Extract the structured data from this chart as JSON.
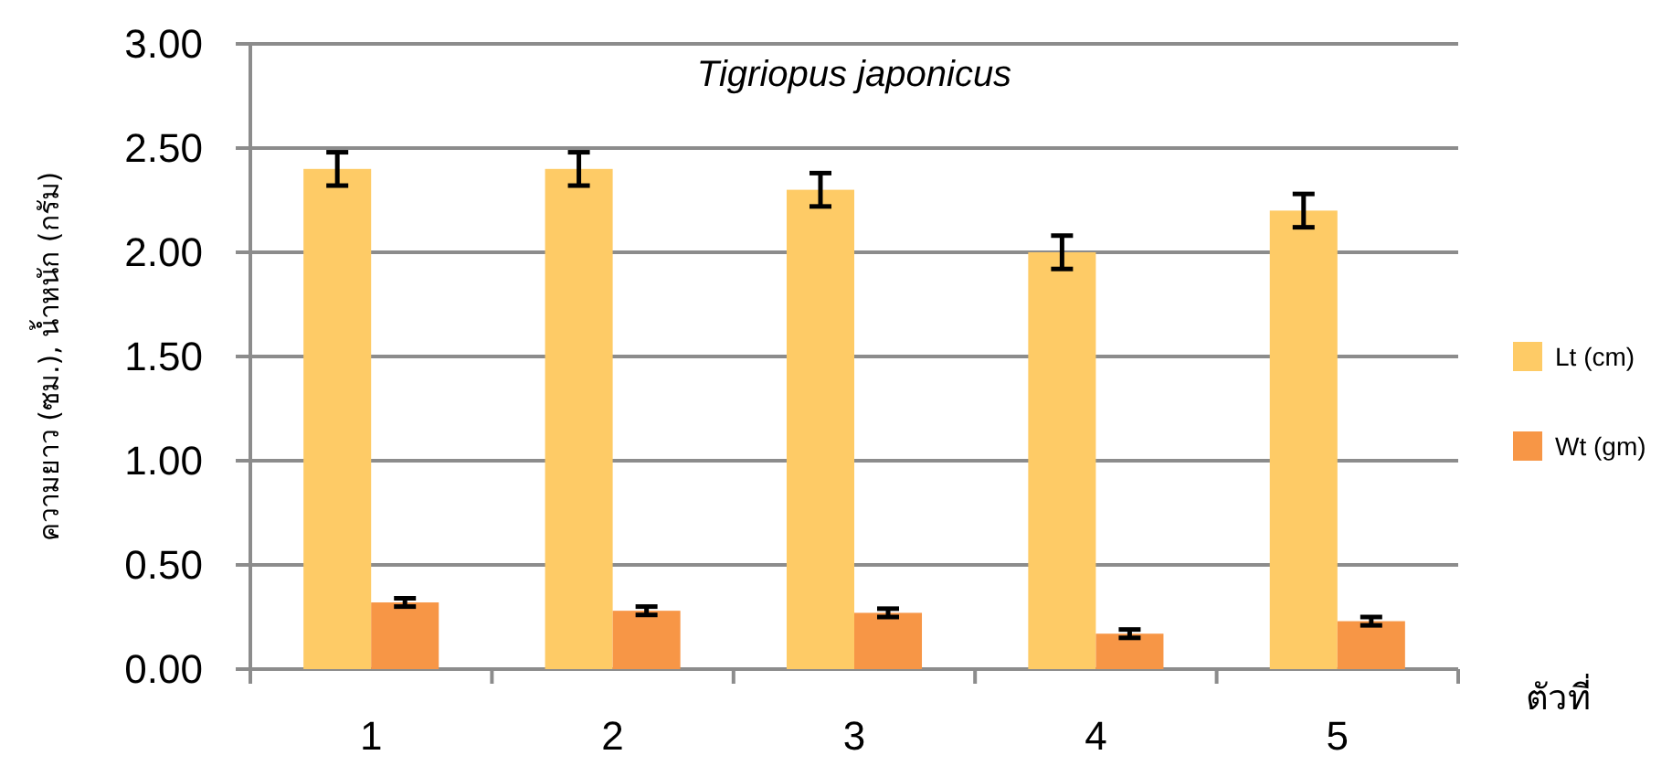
{
  "chart_data": {
    "type": "bar",
    "title": "Tigriopus japonicus",
    "xlabel": "ตัวที่",
    "ylabel": "ความยาว (ซม.), น้ำหนัก (กรัม)",
    "categories": [
      "1",
      "2",
      "3",
      "4",
      "5"
    ],
    "series": [
      {
        "name": "Lt (cm)",
        "color": "#fecb66",
        "values": [
          2.4,
          2.4,
          2.3,
          2.0,
          2.2
        ],
        "errors": [
          0.08,
          0.08,
          0.08,
          0.08,
          0.08
        ]
      },
      {
        "name": "Wt (gm)",
        "color": "#f79646",
        "values": [
          0.32,
          0.28,
          0.27,
          0.17,
          0.23
        ],
        "errors": [
          0.02,
          0.02,
          0.02,
          0.02,
          0.02
        ]
      }
    ],
    "ylim": [
      0,
      3
    ],
    "yticks": [
      {
        "value": 0,
        "label": "0.00"
      },
      {
        "value": 0.5,
        "label": "0.50"
      },
      {
        "value": 1,
        "label": "1.00"
      },
      {
        "value": 1.5,
        "label": "1.50"
      },
      {
        "value": 2,
        "label": "2.00"
      },
      {
        "value": 2.5,
        "label": "2.50"
      },
      {
        "value": 3,
        "label": "3.00"
      }
    ],
    "grid": "y",
    "legend": "right"
  }
}
